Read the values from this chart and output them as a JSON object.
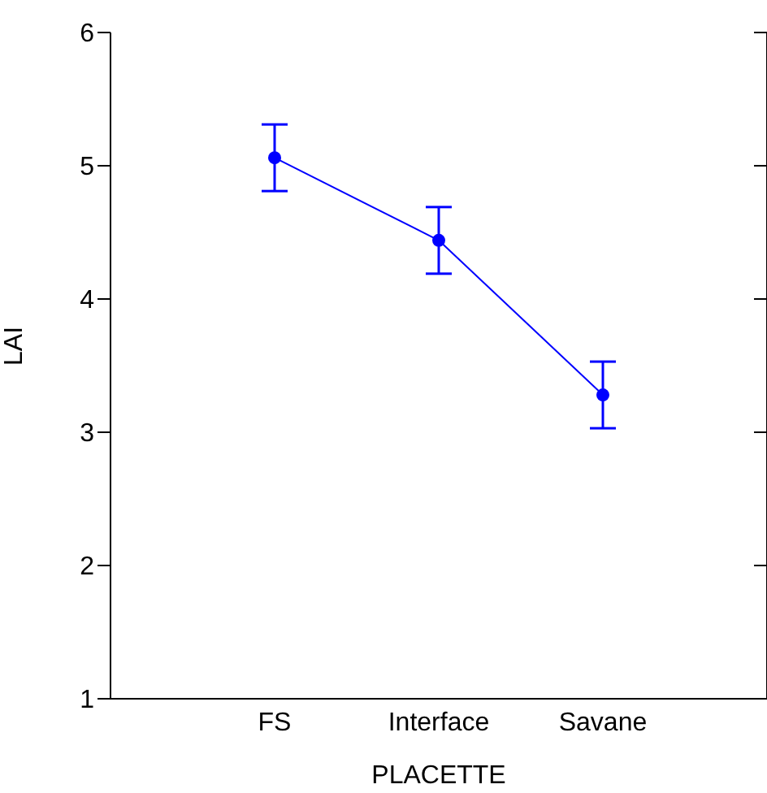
{
  "chart_data": {
    "type": "line",
    "xlabel": "PLACETTE",
    "ylabel": "LAI",
    "categories": [
      "FS",
      "Interface",
      "Savane"
    ],
    "series": [
      {
        "color": "#0000ff",
        "values": [
          5.06,
          4.44,
          3.28
        ],
        "errors": [
          0.25,
          0.25,
          0.25
        ]
      }
    ],
    "ylim": [
      1,
      6
    ],
    "yticks": [
      1,
      2,
      3,
      4,
      5,
      6
    ],
    "marker": "circle",
    "line_style": "solid"
  }
}
